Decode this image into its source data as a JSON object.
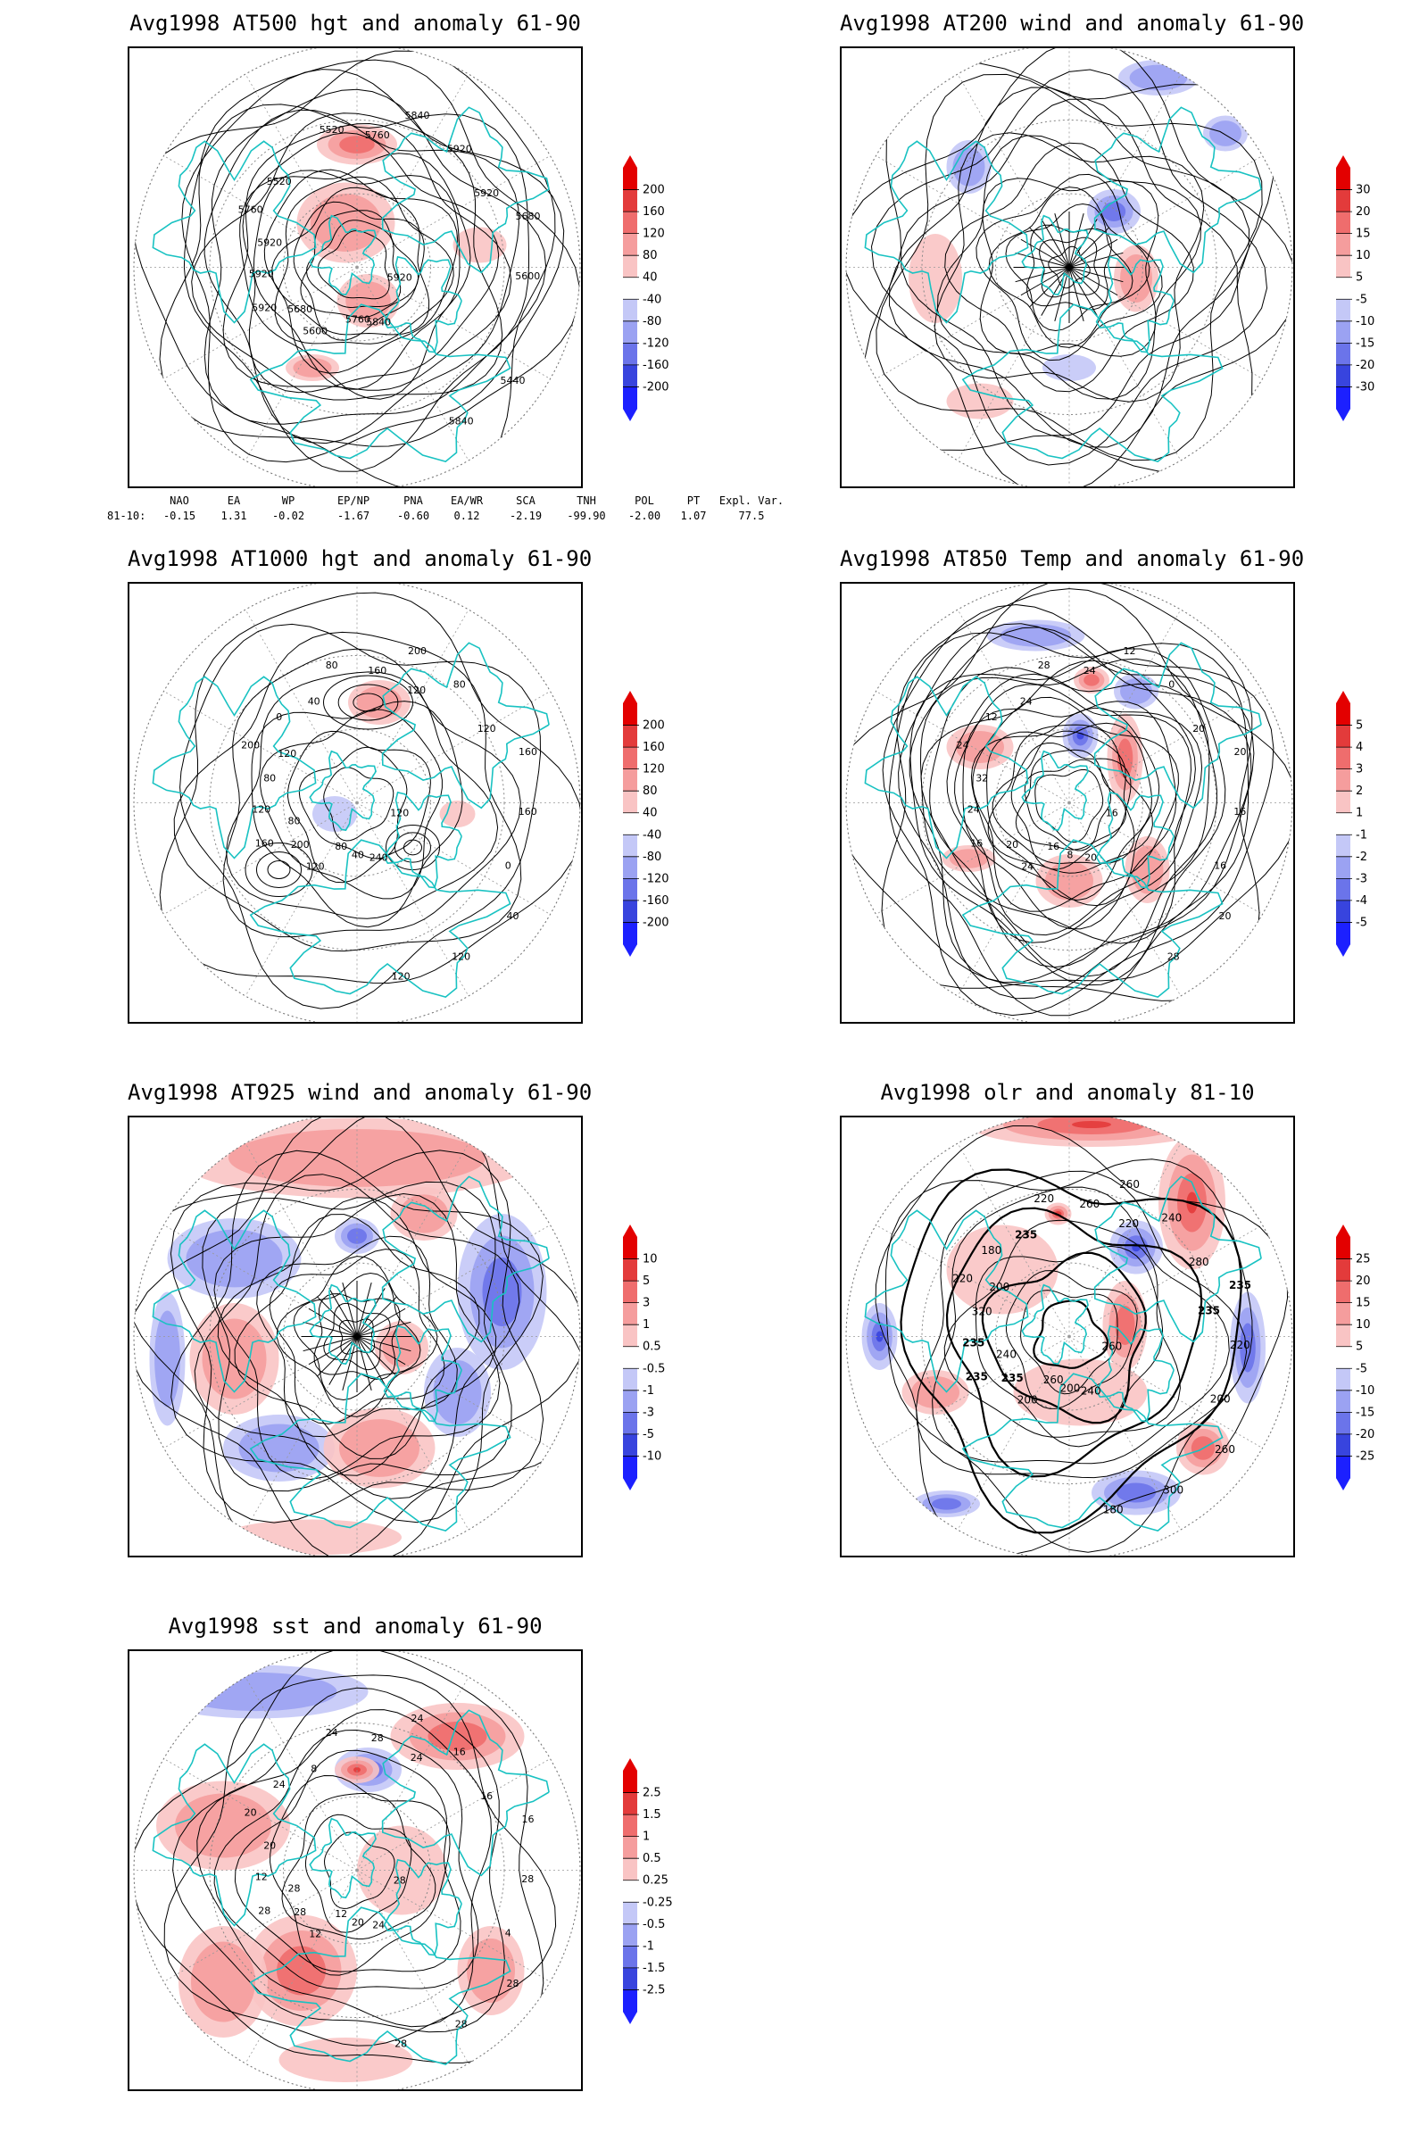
{
  "panels": [
    {
      "id": "at500",
      "title": "Avg1998 AT500 hgt and anomaly 61-90",
      "colorbar": [
        "200",
        "160",
        "120",
        "80",
        "40",
        "-40",
        "-80",
        "-120",
        "-160",
        "-200"
      ],
      "contour_labels": [
        "5920",
        "5920",
        "5840",
        "5840",
        "5760",
        "5680",
        "5600",
        "5520",
        "5440",
        "5920",
        "5920",
        "5760",
        "5520",
        "5600",
        "5680",
        "5760",
        "5840",
        "5920",
        "5920"
      ]
    },
    {
      "id": "at200",
      "title": "Avg1998 AT200 wind and anomaly 61-90",
      "colorbar": [
        "30",
        "20",
        "15",
        "10",
        "5",
        "-5",
        "-10",
        "-15",
        "-20",
        "-30"
      ],
      "contour_labels": []
    },
    {
      "id": "at1000",
      "title": "Avg1998 AT1000 hgt and anomaly 61-90",
      "colorbar": [
        "200",
        "160",
        "120",
        "80",
        "40",
        "-40",
        "-80",
        "-120",
        "-160",
        "-200"
      ],
      "contour_labels": [
        "120",
        "160",
        "200",
        "240",
        "200",
        "160",
        "120",
        "80",
        "40",
        "120",
        "80",
        "40",
        "0",
        "160",
        "200",
        "160",
        "120",
        "80",
        "120",
        "80",
        "40",
        "0",
        "80",
        "120",
        "120",
        "120"
      ]
    },
    {
      "id": "at850",
      "title": "Avg1998 AT850 Temp and anomaly 61-90",
      "colorbar": [
        "5",
        "4",
        "3",
        "2",
        "1",
        "-1",
        "-2",
        "-3",
        "-4",
        "-5"
      ],
      "contour_labels": [
        "16",
        "16",
        "12",
        "20",
        "24",
        "20",
        "24",
        "28",
        "20",
        "24",
        "0",
        "8",
        "12",
        "16",
        "20",
        "24",
        "28",
        "32",
        "20",
        "16",
        "24",
        "16"
      ]
    },
    {
      "id": "at925",
      "title": "Avg1998 AT925 wind and anomaly 61-90",
      "colorbar": [
        "10",
        "5",
        "3",
        "1",
        "0.5",
        "-0.5",
        "-1",
        "-3",
        "-5",
        "-10"
      ],
      "contour_labels": []
    },
    {
      "id": "olr",
      "title": "Avg1998 olr and anomaly 81-10",
      "colorbar": [
        "25",
        "20",
        "15",
        "10",
        "5",
        "-5",
        "-10",
        "-15",
        "-20",
        "-25"
      ],
      "contour_labels": [
        "260",
        "235",
        "260",
        "240",
        "220",
        "235",
        "200",
        "220",
        "260",
        "235",
        "240",
        "200",
        "180",
        "220",
        "235",
        "260",
        "300",
        "320",
        "280",
        "260",
        "235",
        "200",
        "240",
        "220",
        "180",
        "200",
        "235"
      ]
    },
    {
      "id": "sst",
      "title": "Avg1998 sst and anomaly 61-90",
      "colorbar": [
        "2.5",
        "1.5",
        "1",
        "0.5",
        "0.25",
        "-0.25",
        "-0.5",
        "-1",
        "-1.5",
        "-2.5"
      ],
      "contour_labels": [
        "28",
        "28",
        "24",
        "24",
        "20",
        "16",
        "12",
        "24",
        "28",
        "12",
        "16",
        "20",
        "24",
        "28",
        "28",
        "28",
        "28",
        "20",
        "16",
        "12",
        "8",
        "4",
        "28",
        "24",
        "28"
      ]
    }
  ],
  "teleconnection": {
    "headers": [
      "NAO",
      "EA",
      "WP",
      "EP/NP",
      "PNA",
      "EA/WR",
      "SCA",
      "TNH",
      "POL",
      "PT",
      "Expl. Var."
    ],
    "row_label": "81-10:",
    "values": [
      "-0.15",
      "1.31",
      "-0.02",
      "-1.67",
      "-0.60",
      "0.12",
      "-2.19",
      "-99.90",
      "-2.00",
      "1.07",
      "77.5"
    ]
  },
  "colors": {
    "coast": "#19c2c2",
    "contour": "#000000",
    "red_scale": [
      "#fbe4e4",
      "#f9c4c4",
      "#f59d9d",
      "#ef6d6d",
      "#e33b3b"
    ],
    "blue_scale": [
      "#e4e6fb",
      "#c4c8f7",
      "#9ba2f2",
      "#6b74ea",
      "#3844de"
    ],
    "top_red": "#e30000",
    "bottom_blue": "#1c20ff"
  }
}
